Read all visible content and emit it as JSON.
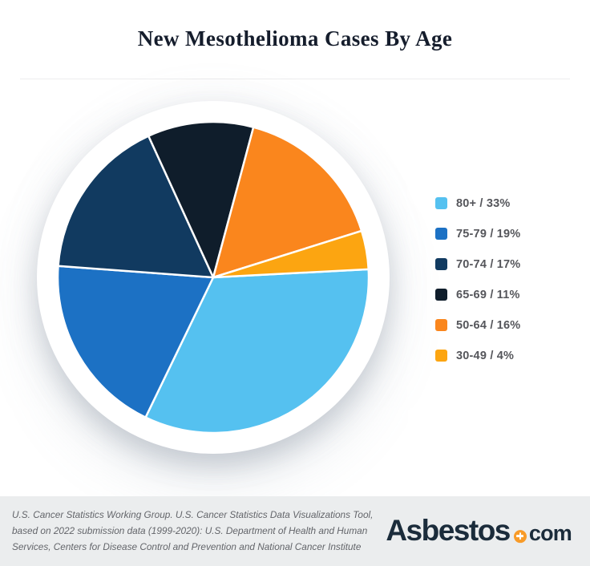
{
  "page": {
    "title": "New Mesothelioma Cases By Age"
  },
  "chart_data": {
    "type": "pie",
    "title": "New Mesothelioma Cases By Age",
    "start_angle_deg": -3,
    "direction": "clockwise",
    "legend_position": "right",
    "slices": [
      {
        "label": "80+",
        "value": 33,
        "legend_text": "80+ / 33%",
        "color": "#55C1F0"
      },
      {
        "label": "75-79",
        "value": 19,
        "legend_text": "75-79 / 19%",
        "color": "#1C71C4"
      },
      {
        "label": "70-74",
        "value": 17,
        "legend_text": "70-74 / 17%",
        "color": "#113A60"
      },
      {
        "label": "65-69",
        "value": 11,
        "legend_text": "65-69 / 11%",
        "color": "#0F1D2B"
      },
      {
        "label": "50-64",
        "value": 16,
        "legend_text": "50-64 / 16%",
        "color": "#FA861D"
      },
      {
        "label": "30-49",
        "value": 4,
        "legend_text": "30-49 / 4%",
        "color": "#FCA511"
      }
    ]
  },
  "footer": {
    "source_lines": [
      "U.S. Cancer Statistics Working Group. U.S. Cancer Statistics Data Visualizations Tool,",
      "based on 2022 submission data (1999-2020): U.S. Department of Health and Human",
      "Services, Centers for Disease Control and Prevention and National Cancer Institute"
    ],
    "logo": {
      "wordmark": "Asbestos",
      "tld": "com",
      "plus_icon": "plus-in-circle",
      "accent_color": "#F89B28",
      "text_color": "#1B2C3B"
    }
  },
  "colors": {
    "background": "#FFFFFF",
    "footer_band": "#EBEDEE",
    "divider": "#EDEDEE",
    "title_text": "#151D2C",
    "legend_text": "#55565B",
    "source_text": "#63656A"
  }
}
